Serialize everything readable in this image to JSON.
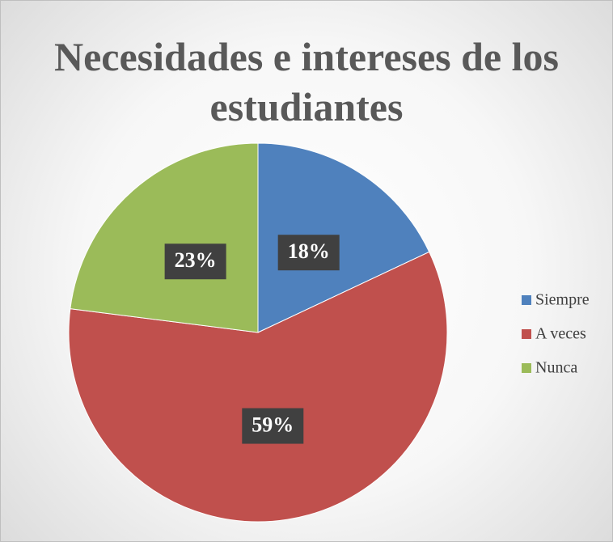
{
  "chart_data": {
    "type": "pie",
    "title": "Necesidades e intereses de los estudiantes",
    "categories": [
      "Siempre",
      "A veces",
      "Nunca"
    ],
    "values": [
      18,
      59,
      23
    ],
    "value_labels": [
      "18%",
      "59%",
      "23%"
    ],
    "colors": [
      "#4f81bd",
      "#c0504d",
      "#9bbb59"
    ],
    "legend": "right"
  }
}
